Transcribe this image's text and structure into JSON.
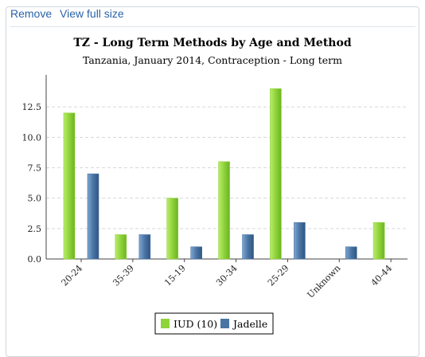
{
  "toolbar": {
    "remove_label": "Remove",
    "view_full_label": "View full size"
  },
  "colors": {
    "iud": "#8fd33a",
    "jadelle": "#4a74a4"
  },
  "chart_data": {
    "type": "bar",
    "title": "TZ - Long Term Methods by Age and Method",
    "subtitle": "Tanzania, January 2014, Contraception - Long term",
    "xlabel": "",
    "ylabel": "",
    "ylim": [
      0,
      15
    ],
    "yticks": [
      "0.0",
      "2.5",
      "5.0",
      "7.5",
      "10.0",
      "12.5"
    ],
    "grid": true,
    "legend_position": "bottom",
    "categories": [
      "20-24",
      "35-39",
      "15-19",
      "30-34",
      "25-29",
      "Unknown",
      "40-44"
    ],
    "series": [
      {
        "name": "IUD (10)",
        "values": [
          12,
          2,
          5,
          8,
          14,
          0,
          3
        ]
      },
      {
        "name": "Jadelle",
        "values": [
          7,
          2,
          1,
          2,
          3,
          1,
          0
        ]
      }
    ]
  }
}
